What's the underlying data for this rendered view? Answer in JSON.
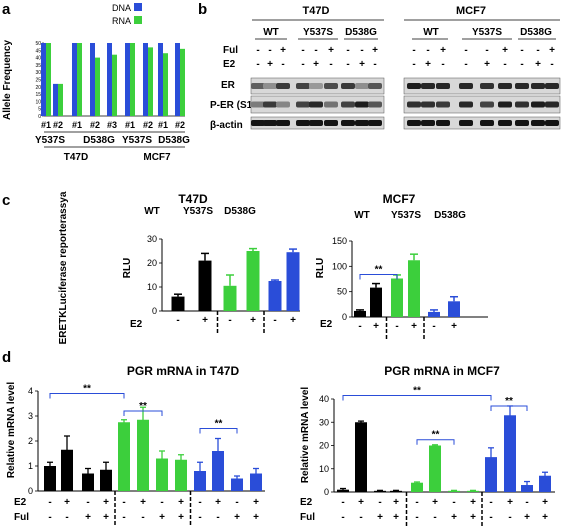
{
  "panels": {
    "a": {
      "letter": "a",
      "ylabel": "Allele Frequency",
      "legend": [
        {
          "label": "DNA",
          "color": "#2a4dd8"
        },
        {
          "label": "RNA",
          "color": "#3ccf3c"
        }
      ],
      "group_labels": [
        "Y537S",
        "D538G",
        "Y537S",
        "D538G"
      ],
      "cell_labels": [
        "T47D",
        "MCF7"
      ]
    },
    "b": {
      "letter": "b",
      "cells": [
        "T47D",
        "MCF7"
      ],
      "genotypes": [
        "WT",
        "Y537S",
        "D538G"
      ],
      "row_ful": "Ful",
      "row_e2": "E2",
      "blot_labels": [
        "ER",
        "P-ER (S118)",
        "β-actin"
      ],
      "ful_signs": [
        "-",
        "-",
        "+",
        "-",
        "-",
        "+",
        "-",
        "-",
        "+"
      ],
      "e2_signs": [
        "-",
        "+",
        "-",
        "-",
        "+",
        "-",
        "-",
        "+",
        "-"
      ]
    },
    "c": {
      "letter": "c",
      "ylabel_side": "ERETKLuciferase reporterassya",
      "left_title": "T47D",
      "right_title": "MCF7",
      "axis_y": "RLU",
      "e2_label": "E2",
      "genotypes": [
        "WT",
        "Y537S",
        "D538G"
      ],
      "genotype_colors": [
        "#000000",
        "#3ccf3c",
        "#2a4dd8"
      ],
      "e2_signs": [
        "-",
        "+",
        "-",
        "+",
        "-",
        "+"
      ],
      "sig": "**"
    },
    "d": {
      "letter": "d",
      "left_title": "PGR mRNA in T47D",
      "right_title": "PGR mRNA in MCF7",
      "ylabel": "Relative mRNA level",
      "e2_label": "E2",
      "ful_label": "Ful",
      "e2_signs": [
        "-",
        "+",
        "-",
        "+",
        "-",
        "+",
        "-",
        "+",
        "-",
        "+",
        "-",
        "+"
      ],
      "ful_signs": [
        "-",
        "-",
        "+",
        "+",
        "-",
        "-",
        "+",
        "+",
        "-",
        "-",
        "+",
        "+"
      ],
      "sig": "**"
    }
  },
  "chart_data": [
    {
      "type": "bar",
      "panel": "a",
      "ylabel": "Allele Frequency",
      "categories": [
        "#1",
        "#2",
        "#1",
        "#2",
        "#3",
        "#1",
        "#2",
        "#1",
        "#2"
      ],
      "series": [
        {
          "name": "DNA",
          "values": [
            50,
            22,
            50,
            50,
            50,
            50,
            50,
            50,
            50
          ]
        },
        {
          "name": "RNA",
          "values": [
            50,
            22,
            50,
            40,
            42,
            50,
            47,
            43,
            46
          ]
        }
      ],
      "ylim": [
        0,
        50
      ],
      "yticks": [
        0,
        5,
        10,
        15,
        20,
        25,
        30,
        35,
        40,
        45,
        50
      ]
    },
    {
      "type": "bar",
      "panel": "c-left",
      "title": "T47D",
      "ylabel": "RLU",
      "categories": [
        "-",
        "+",
        "-",
        "+",
        "-",
        "+"
      ],
      "values": [
        6,
        21,
        10.5,
        25,
        12.5,
        24.5
      ],
      "errors": [
        1,
        3,
        4.5,
        1,
        0.4,
        1.3
      ],
      "ylim": [
        0,
        30
      ],
      "yticks": [
        0,
        10,
        20,
        30
      ]
    },
    {
      "type": "bar",
      "panel": "c-right",
      "title": "MCF7",
      "ylabel": "RLU",
      "categories": [
        "-",
        "+",
        "-",
        "+",
        "-",
        "+"
      ],
      "values": [
        12,
        58,
        76,
        112,
        10,
        31
      ],
      "errors": [
        2,
        8,
        7,
        12,
        4,
        9
      ],
      "ylim": [
        0,
        150
      ],
      "yticks": [
        0,
        50,
        100,
        150
      ]
    },
    {
      "type": "bar",
      "panel": "d-left",
      "title": "PGR mRNA in T47D",
      "ylabel": "Relative mRNA level",
      "categories": [
        "-",
        "+",
        "-",
        "+",
        "-",
        "+",
        "-",
        "+",
        "-",
        "+",
        "-",
        "+"
      ],
      "values": [
        1.0,
        1.65,
        0.7,
        0.85,
        2.75,
        2.85,
        1.3,
        1.25,
        0.8,
        1.6,
        0.5,
        0.7
      ],
      "errors": [
        0.15,
        0.55,
        0.2,
        0.3,
        0.1,
        0.5,
        0.3,
        0.2,
        0.35,
        0.5,
        0.1,
        0.2
      ],
      "ylim": [
        0,
        4
      ],
      "yticks": [
        0,
        1,
        2,
        3,
        4
      ]
    },
    {
      "type": "bar",
      "panel": "d-right",
      "title": "PGR mRNA in MCF7",
      "ylabel": "Relative mRNA level",
      "categories": [
        "-",
        "+",
        "-",
        "+",
        "-",
        "+",
        "-",
        "+",
        "-",
        "+",
        "-",
        "+"
      ],
      "values": [
        1,
        30,
        0.5,
        0.5,
        4,
        20,
        0.5,
        0.5,
        15,
        33,
        3,
        7
      ],
      "errors": [
        0.5,
        0.5,
        0.2,
        0.2,
        0.3,
        0.3,
        0.2,
        0.2,
        4,
        4,
        1.5,
        1.5
      ],
      "ylim": [
        0,
        40
      ],
      "yticks": [
        0,
        10,
        20,
        30,
        40
      ]
    }
  ]
}
